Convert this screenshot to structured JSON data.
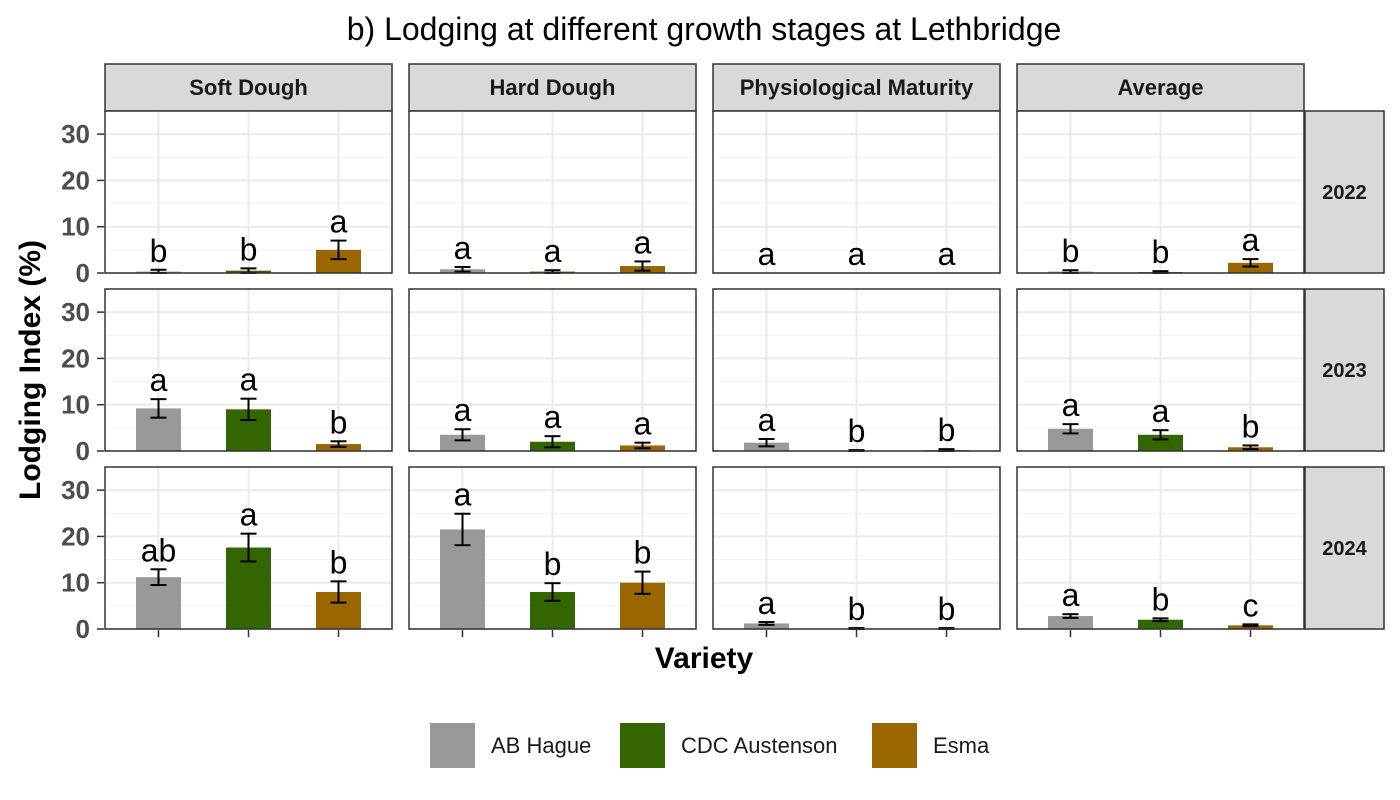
{
  "chart_data": {
    "type": "bar",
    "title": "b) Lodging at different growth stages at Lethbridge",
    "xlabel": "Variety",
    "ylabel": "Lodging Index (%)",
    "ylim": [
      0,
      35
    ],
    "yticks": [
      0,
      10,
      20,
      30
    ],
    "grid": true,
    "legend_position": "bottom",
    "categories": [
      "AB Hague",
      "CDC Austenson",
      "Esma"
    ],
    "colors": {
      "AB Hague": "#999999",
      "CDC Austenson": "#336600",
      "Esma": "#996600"
    },
    "stages": [
      "Soft Dough",
      "Hard Dough",
      "Physiological Maturity",
      "Average"
    ],
    "years": [
      "2022",
      "2023",
      "2024"
    ],
    "panels": [
      {
        "year": "2022",
        "stage": "Soft Dough",
        "values": [
          0.3,
          0.5,
          5.0
        ],
        "errors": [
          0.4,
          0.5,
          2.0
        ],
        "letters": [
          "b",
          "b",
          "a"
        ]
      },
      {
        "year": "2022",
        "stage": "Hard Dough",
        "values": [
          0.8,
          0.3,
          1.5
        ],
        "errors": [
          0.5,
          0.3,
          1.0
        ],
        "letters": [
          "a",
          "a",
          "a"
        ]
      },
      {
        "year": "2022",
        "stage": "Physiological Maturity",
        "values": [
          0,
          0,
          0
        ],
        "errors": [
          0,
          0,
          0
        ],
        "letters": [
          "a",
          "a",
          "a"
        ]
      },
      {
        "year": "2022",
        "stage": "Average",
        "values": [
          0.3,
          0.2,
          2.2
        ],
        "errors": [
          0.3,
          0.2,
          0.8
        ],
        "letters": [
          "b",
          "b",
          "a"
        ]
      },
      {
        "year": "2023",
        "stage": "Soft Dough",
        "values": [
          9.2,
          9.0,
          1.5
        ],
        "errors": [
          2.0,
          2.3,
          0.6
        ],
        "letters": [
          "a",
          "a",
          "b"
        ]
      },
      {
        "year": "2023",
        "stage": "Hard Dough",
        "values": [
          3.5,
          2.0,
          1.2
        ],
        "errors": [
          1.2,
          1.2,
          0.6
        ],
        "letters": [
          "a",
          "a",
          "a"
        ]
      },
      {
        "year": "2023",
        "stage": "Physiological Maturity",
        "values": [
          1.8,
          0.1,
          0.2
        ],
        "errors": [
          0.8,
          0.1,
          0.2
        ],
        "letters": [
          "a",
          "b",
          "b"
        ]
      },
      {
        "year": "2023",
        "stage": "Average",
        "values": [
          4.8,
          3.5,
          0.8
        ],
        "errors": [
          1.0,
          1.0,
          0.4
        ],
        "letters": [
          "a",
          "a",
          "b"
        ]
      },
      {
        "year": "2024",
        "stage": "Soft Dough",
        "values": [
          11.2,
          17.6,
          8.0
        ],
        "errors": [
          1.7,
          3.0,
          2.3
        ],
        "letters": [
          "ab",
          "a",
          "b"
        ]
      },
      {
        "year": "2024",
        "stage": "Hard Dough",
        "values": [
          21.5,
          8.0,
          10.0
        ],
        "errors": [
          3.4,
          1.9,
          2.4
        ],
        "letters": [
          "a",
          "b",
          "b"
        ]
      },
      {
        "year": "2024",
        "stage": "Physiological Maturity",
        "values": [
          1.2,
          0.1,
          0.1
        ],
        "errors": [
          0.3,
          0.1,
          0.1
        ],
        "letters": [
          "a",
          "b",
          "b"
        ]
      },
      {
        "year": "2024",
        "stage": "Average",
        "values": [
          2.8,
          2.0,
          0.8
        ],
        "errors": [
          0.4,
          0.3,
          0.2
        ],
        "letters": [
          "a",
          "b",
          "c"
        ]
      }
    ]
  }
}
